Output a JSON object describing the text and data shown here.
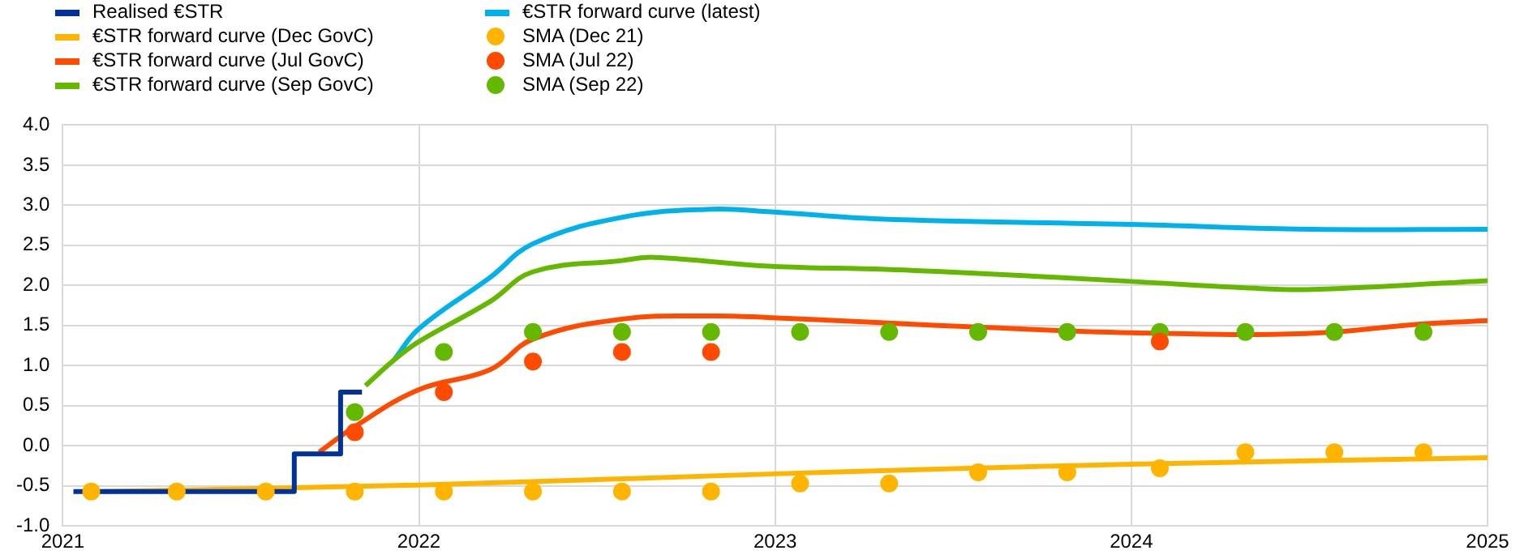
{
  "chart_data": {
    "type": "line",
    "legend": "top left",
    "grid": true,
    "marker": "none",
    "xlim": [
      2021,
      2025
    ],
    "xticks": [
      {
        "value": 2021,
        "label": "2021"
      },
      {
        "value": 2022,
        "label": "2022"
      },
      {
        "value": 2023,
        "label": "2023"
      },
      {
        "value": 2024,
        "label": "2024"
      },
      {
        "value": 2025,
        "label": "2025"
      }
    ],
    "ylim": [
      -1.0,
      4.0
    ],
    "yticks": [
      {
        "value": -1.0,
        "label": "-1.0"
      },
      {
        "value": -0.5,
        "label": "-0.5"
      },
      {
        "value": 0,
        "label": "0.0"
      },
      {
        "value": 0.5,
        "label": "0.5"
      },
      {
        "value": 1.0,
        "label": "1.0"
      },
      {
        "value": 1.5,
        "label": "1.5"
      },
      {
        "value": 2.0,
        "label": "2.0"
      },
      {
        "value": 2.5,
        "label": "2.5"
      },
      {
        "value": 3.0,
        "label": "3.0"
      },
      {
        "value": 3.5,
        "label": "3.5"
      },
      {
        "value": 4.0,
        "label": "4.0"
      }
    ],
    "series": [
      {
        "name": "Realised €STR",
        "type": "step",
        "color": "#003299",
        "x": [
          2021.03,
          2021.65,
          2021.78,
          2021.84
        ],
        "values": [
          -0.57,
          -0.1,
          0.67,
          0.67
        ]
      },
      {
        "name": "€STR forward curve (Dec GovC)",
        "color": "#ffb400",
        "x": [
          2021.1,
          2022.0,
          2023.0,
          2024.0,
          2025.0
        ],
        "values": [
          -0.57,
          -0.49,
          -0.35,
          -0.23,
          -0.15
        ]
      },
      {
        "name": "€STR forward curve (Jul GovC)",
        "color": "#ff4b00",
        "x": [
          2021.72,
          2021.82,
          2022.0,
          2022.2,
          2022.32,
          2022.57,
          2022.82,
          2022.98,
          2023.32,
          2023.57,
          2024.0,
          2024.49,
          2024.82,
          2025.0
        ],
        "values": [
          -0.08,
          0.24,
          0.7,
          0.95,
          1.33,
          1.58,
          1.62,
          1.6,
          1.53,
          1.48,
          1.41,
          1.4,
          1.52,
          1.56
        ]
      },
      {
        "name": "€STR forward curve (Sep GovC)",
        "color": "#65b800",
        "x": [
          2021.85,
          2021.93,
          2022.0,
          2022.2,
          2022.32,
          2022.57,
          2022.66,
          2022.98,
          2023.31,
          2023.57,
          2024.0,
          2024.32,
          2024.51,
          2025.0
        ],
        "values": [
          0.75,
          1.07,
          1.3,
          1.8,
          2.17,
          2.31,
          2.35,
          2.24,
          2.2,
          2.15,
          2.05,
          1.97,
          1.95,
          2.06
        ]
      },
      {
        "name": "€STR forward curve (latest)",
        "color": "#00b1ea",
        "x": [
          2021.93,
          2022.0,
          2022.2,
          2022.32,
          2022.57,
          2022.82,
          2022.98,
          2023.29,
          2024.0,
          2024.51,
          2025.0
        ],
        "values": [
          1.07,
          1.46,
          2.1,
          2.52,
          2.85,
          2.95,
          2.92,
          2.83,
          2.76,
          2.7,
          2.7
        ]
      },
      {
        "name": "SMA (Dec 21)",
        "type": "scatter",
        "marker": "circle",
        "color": "#ffb400",
        "x": [
          2021.08,
          2021.32,
          2021.57,
          2021.82,
          2022.07,
          2022.32,
          2022.57,
          2022.82,
          2023.07,
          2023.32,
          2023.57,
          2023.82,
          2024.08,
          2024.32,
          2024.57,
          2024.82
        ],
        "values": [
          -0.57,
          -0.57,
          -0.57,
          -0.57,
          -0.57,
          -0.57,
          -0.57,
          -0.57,
          -0.47,
          -0.47,
          -0.33,
          -0.33,
          -0.28,
          -0.08,
          -0.08,
          -0.08
        ]
      },
      {
        "name": "SMA (Jul 22)",
        "type": "scatter",
        "marker": "circle",
        "color": "#ff4b00",
        "x": [
          2021.82,
          2022.07,
          2022.32,
          2022.57,
          2022.82,
          2024.08
        ],
        "values": [
          0.17,
          0.67,
          1.05,
          1.17,
          1.17,
          1.3
        ]
      },
      {
        "name": "SMA (Sep 22)",
        "type": "scatter",
        "marker": "circle",
        "color": "#65b800",
        "x": [
          2021.82,
          2022.07,
          2022.32,
          2022.57,
          2022.82,
          2023.07,
          2023.32,
          2023.57,
          2023.82,
          2024.08,
          2024.32,
          2024.57,
          2024.82
        ],
        "values": [
          0.42,
          1.17,
          1.42,
          1.42,
          1.42,
          1.42,
          1.42,
          1.42,
          1.42,
          1.42,
          1.42,
          1.42,
          1.42
        ]
      }
    ]
  }
}
